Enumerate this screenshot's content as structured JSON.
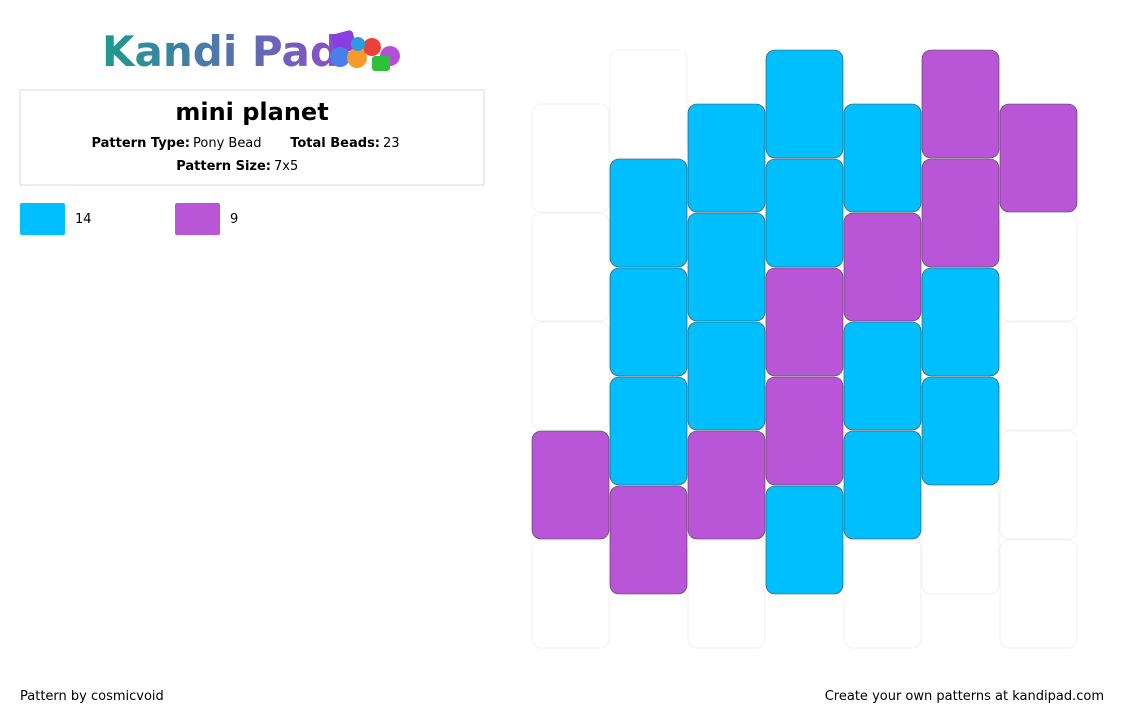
{
  "logo": "Kandi Pad",
  "title": "mini planet",
  "pattern_type": {
    "label": "Pattern Type:",
    "value": "Pony Bead"
  },
  "total_beads": {
    "label": "Total Beads:",
    "value": 23
  },
  "pattern_size": {
    "label": "Pattern Size:",
    "value": "7x5"
  },
  "palette": [
    {
      "color": "#00bfff",
      "count": 14
    },
    {
      "color": "#b856d7",
      "count": 9
    }
  ],
  "columns": [
    [
      null,
      null,
      null,
      1,
      null
    ],
    [
      null,
      0,
      0,
      0,
      1
    ],
    [
      0,
      0,
      0,
      1,
      null
    ],
    [
      0,
      0,
      1,
      1,
      0
    ],
    [
      0,
      1,
      0,
      0,
      null
    ],
    [
      1,
      1,
      0,
      0,
      null
    ],
    [
      1,
      null,
      null,
      null,
      null
    ]
  ],
  "footer": {
    "author": "Pattern by cosmicvoid",
    "site": "Create your own patterns at kandipad.com"
  }
}
